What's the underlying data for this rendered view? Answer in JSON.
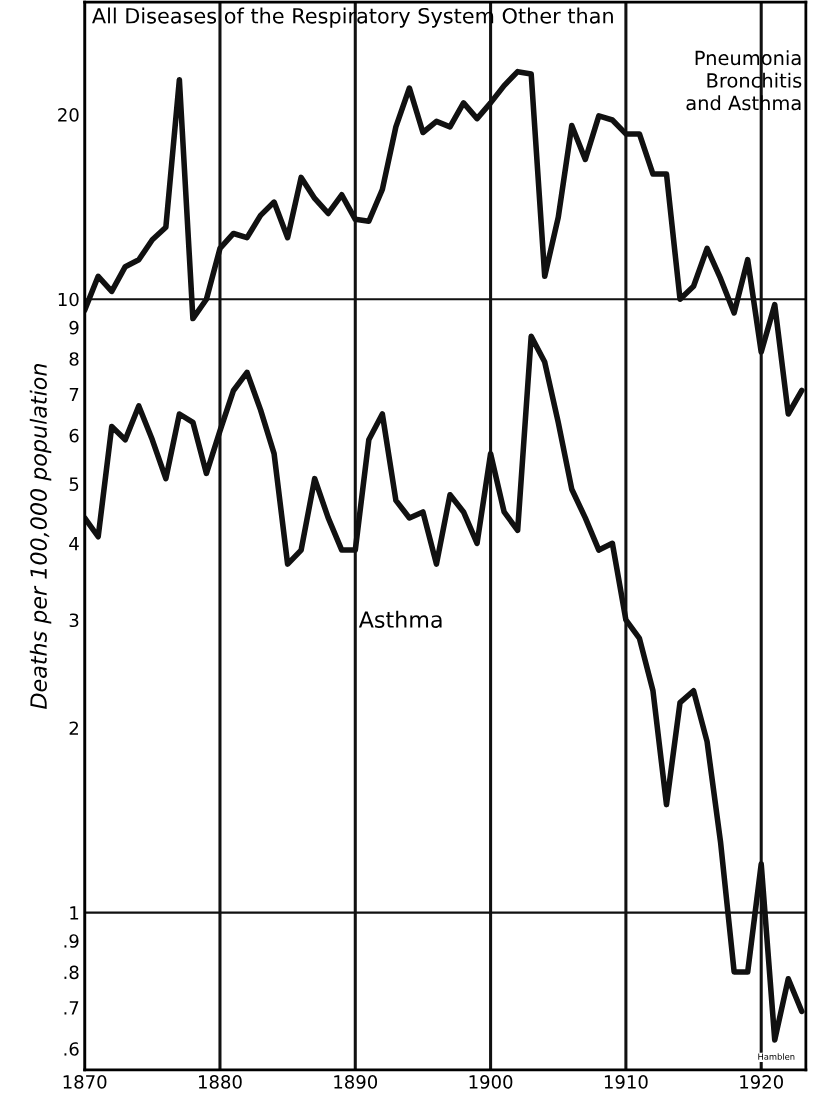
{
  "chart_data": {
    "type": "line",
    "ylabel": "Deaths per 100,000 population",
    "x": [
      1870,
      1871,
      1872,
      1873,
      1874,
      1875,
      1876,
      1877,
      1878,
      1879,
      1880,
      1881,
      1882,
      1883,
      1884,
      1885,
      1886,
      1887,
      1888,
      1889,
      1890,
      1891,
      1892,
      1893,
      1894,
      1895,
      1896,
      1897,
      1898,
      1899,
      1900,
      1901,
      1902,
      1903,
      1904,
      1905,
      1906,
      1907,
      1908,
      1909,
      1910,
      1911,
      1912,
      1913,
      1914,
      1915,
      1916,
      1917,
      1918,
      1919,
      1920,
      1921,
      1922,
      1923
    ],
    "series": [
      {
        "name": "All Diseases of the Respiratory System Other than\nPneumonia\nBronchitis\nand Asthma",
        "color": "#111111",
        "values": [
          9.6,
          10.9,
          10.3,
          11.3,
          11.6,
          12.5,
          13.1,
          22.8,
          9.3,
          10.0,
          12.1,
          12.8,
          12.6,
          13.7,
          14.4,
          12.6,
          15.8,
          14.6,
          13.8,
          14.8,
          13.5,
          13.4,
          15.1,
          19.1,
          22.1,
          18.7,
          19.5,
          19.1,
          20.9,
          19.7,
          20.9,
          22.3,
          23.5,
          23.3,
          10.9,
          13.6,
          19.2,
          16.9,
          19.9,
          19.6,
          18.6,
          18.6,
          16.0,
          16.0,
          10.0,
          10.5,
          12.1,
          10.8,
          9.5,
          11.6,
          8.2,
          9.8,
          6.5,
          7.1
        ]
      },
      {
        "name": "Asthma",
        "color": "#111111",
        "values": [
          4.4,
          4.1,
          6.2,
          5.9,
          6.7,
          5.9,
          5.1,
          6.5,
          6.3,
          5.2,
          6.1,
          7.1,
          7.6,
          6.6,
          5.6,
          3.7,
          3.9,
          5.1,
          4.4,
          3.9,
          3.9,
          5.9,
          6.5,
          4.7,
          4.4,
          4.5,
          3.7,
          4.8,
          4.5,
          4.0,
          5.6,
          4.5,
          4.2,
          8.7,
          7.9,
          6.3,
          4.9,
          4.4,
          3.9,
          4.0,
          3.0,
          2.8,
          2.3,
          1.5,
          2.2,
          2.3,
          1.9,
          1.3,
          0.8,
          0.8,
          1.2,
          0.62,
          0.78,
          0.69
        ]
      }
    ],
    "log": true,
    "xlim": [
      1870,
      1923.3
    ],
    "ylim": [
      0.554,
      30.5
    ],
    "xticks": [
      1870,
      1880,
      1890,
      1900,
      1910,
      1920
    ],
    "yticks": [
      {
        "value": 0.6,
        "label": ".6"
      },
      {
        "value": 0.7,
        "label": ".7"
      },
      {
        "value": 0.8,
        "label": ".8"
      },
      {
        "value": 0.9,
        "label": ".9"
      },
      1,
      2,
      3,
      4,
      5,
      6,
      7,
      8,
      9,
      10,
      20
    ],
    "grid": "x",
    "marker": "none",
    "line_style": "solid",
    "legend": false,
    "ref_lines": [
      {
        "axis": "y",
        "value": 10,
        "label": null
      },
      {
        "axis": "y",
        "value": 1,
        "label": null
      }
    ],
    "annotations": [
      "Hamblen"
    ]
  }
}
